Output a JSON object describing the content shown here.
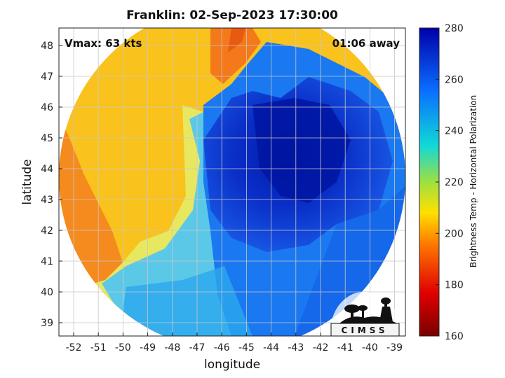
{
  "title": "Franklin: 02-Sep-2023 17:30:00",
  "annotations": {
    "vmax": "Vmax: 63 kts",
    "time_away": "01:06 away"
  },
  "xlabel": "longitude",
  "ylabel": "latitude",
  "x_ticks": [
    "-52",
    "-51",
    "-50",
    "-49",
    "-48",
    "-47",
    "-46",
    "-45",
    "-44",
    "-43",
    "-42",
    "-41",
    "-40",
    "-39"
  ],
  "y_ticks": [
    "39",
    "40",
    "41",
    "42",
    "43",
    "44",
    "45",
    "46",
    "47",
    "48"
  ],
  "colorbar": {
    "label": "Brightness Temp - Horizontal Polarization",
    "ticks": [
      "160",
      "180",
      "200",
      "220",
      "240",
      "260",
      "280"
    ],
    "range": [
      160,
      280
    ],
    "colors": [
      "#7a0000",
      "#e00000",
      "#ff7a00",
      "#ffe000",
      "#9ee040",
      "#10d8d8",
      "#0a6cff",
      "#0000a8"
    ]
  },
  "logo": {
    "text": "CIMSS"
  },
  "colors": {
    "warm_bg": "#f7b514",
    "cold_core": "#0a2cc8",
    "outer_band": "#1478f0"
  }
}
